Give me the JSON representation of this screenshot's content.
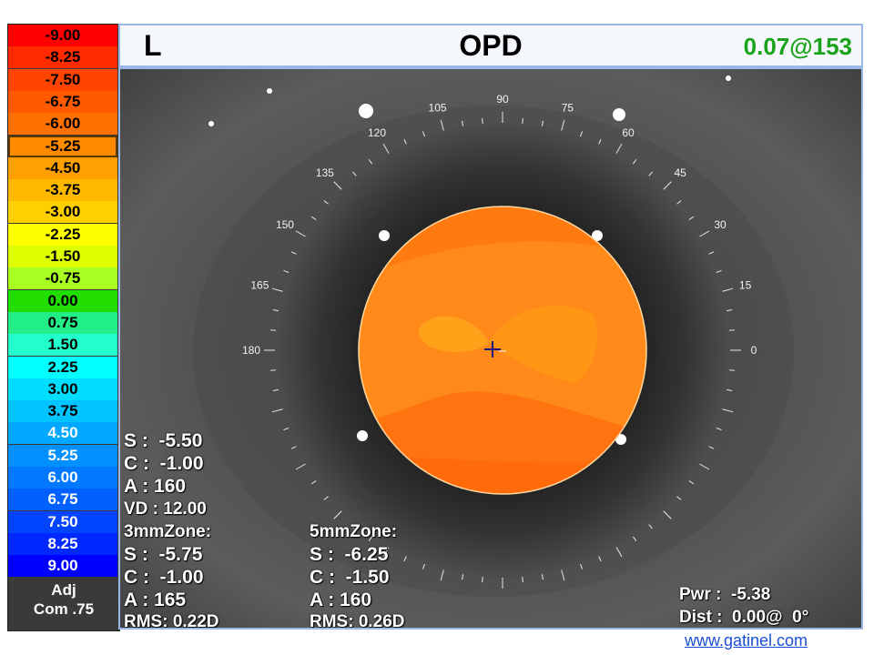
{
  "header": {
    "eye": "L",
    "title": "OPD",
    "readout": "0.07@153",
    "readout_color": "#1aa31a"
  },
  "scale": {
    "items": [
      {
        "label": "-9.00",
        "color": "#ff0000"
      },
      {
        "label": "-8.25",
        "color": "#ff2a00"
      },
      {
        "label": "-7.50",
        "color": "#ff4400"
      },
      {
        "label": "-6.75",
        "color": "#ff5a00"
      },
      {
        "label": "-6.00",
        "color": "#ff7000"
      },
      {
        "label": "-5.25",
        "color": "#ff8a00",
        "selected": true
      },
      {
        "label": "-4.50",
        "color": "#ffa000"
      },
      {
        "label": "-3.75",
        "color": "#ffb800"
      },
      {
        "label": "-3.00",
        "color": "#ffd000"
      },
      {
        "label": "-2.25",
        "color": "#ffff00"
      },
      {
        "label": "-1.50",
        "color": "#ddff00"
      },
      {
        "label": "-0.75",
        "color": "#aaff22"
      },
      {
        "label": "0.00",
        "color": "#22dd00"
      },
      {
        "label": "0.75",
        "color": "#22ee88"
      },
      {
        "label": "1.50",
        "color": "#22ffcc"
      },
      {
        "label": "2.25",
        "color": "#00ffff"
      },
      {
        "label": "3.00",
        "color": "#00ddff"
      },
      {
        "label": "3.75",
        "color": "#00c4ff"
      },
      {
        "label": "4.50",
        "color": "#00a8ff"
      },
      {
        "label": "5.25",
        "color": "#0090ff"
      },
      {
        "label": "6.00",
        "color": "#0078ff"
      },
      {
        "label": "6.75",
        "color": "#0060ff"
      },
      {
        "label": "7.50",
        "color": "#0044ff"
      },
      {
        "label": "8.25",
        "color": "#0028ff"
      },
      {
        "label": "9.00",
        "color": "#0000ff"
      }
    ],
    "footer_line1": "Adj",
    "footer_line2": "Com .75"
  },
  "axis_labels": [
    "0",
    "15",
    "30",
    "45",
    "60",
    "75",
    "90",
    "105",
    "120",
    "135",
    "150",
    "165",
    "180"
  ],
  "left_stats": {
    "s": "S :  -5.50",
    "c": "C :  -1.00",
    "a": "A : 160",
    "vd": "VD : 12.00"
  },
  "zone3": {
    "title": "3mmZone:",
    "s": "S :  -5.75",
    "c": "C :  -1.00",
    "a": "A : 165",
    "rms": "RMS: 0.22D"
  },
  "zone5": {
    "title": "5mmZone:",
    "s": "S :  -6.25",
    "c": "C :  -1.50",
    "a": "A : 160",
    "rms": "RMS: 0.26D"
  },
  "bottom_right": {
    "pwr": "Pwr :  -5.38",
    "dist": "Dist :  0.00@  0°"
  },
  "link": "www.gatinel.com"
}
